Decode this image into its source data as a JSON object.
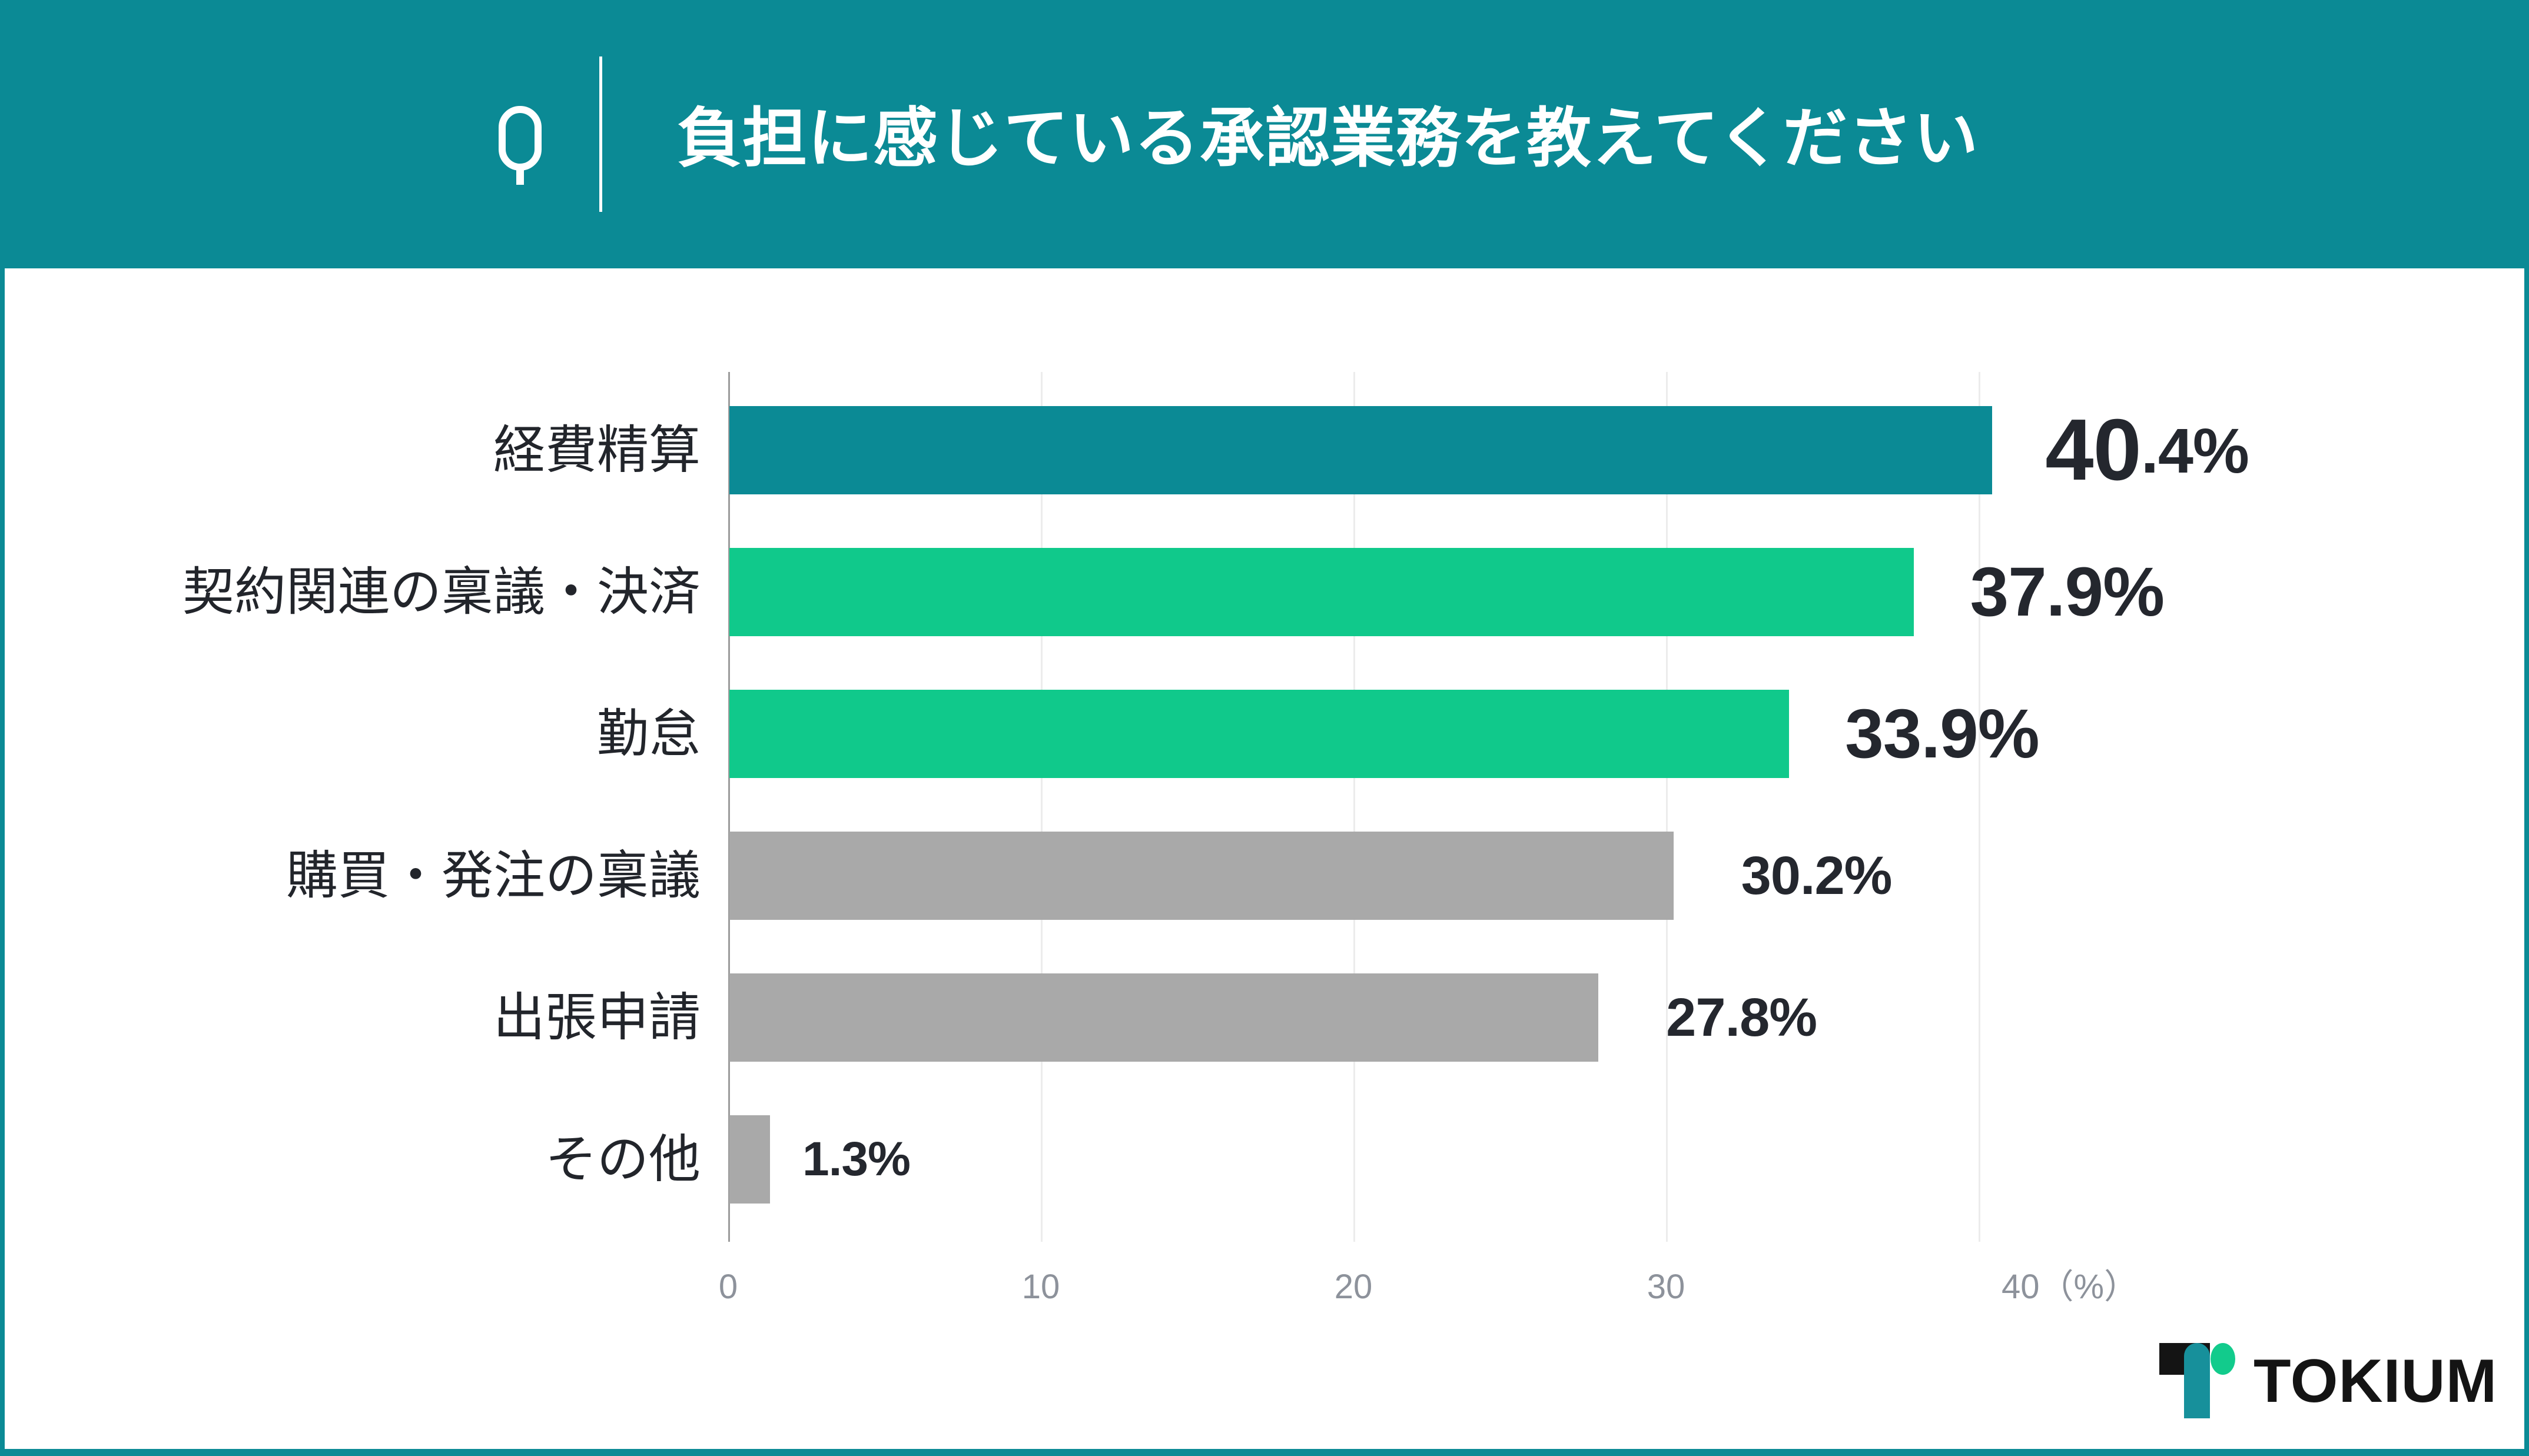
{
  "header": {
    "q_icon": "Q",
    "title": "負担に感じている承認業務を教えてください"
  },
  "chart_data": {
    "type": "bar",
    "orientation": "horizontal",
    "title": "負担に感じている承認業務を教えてください",
    "categories": [
      "経費精算",
      "契約関連の稟議・決済",
      "勤怠",
      "購買・発注の稟議",
      "出張申請",
      "その他"
    ],
    "values": [
      40.4,
      37.9,
      33.9,
      30.2,
      27.8,
      1.3
    ],
    "value_labels": [
      "40.4%",
      "37.9%",
      "33.9%",
      "30.2%",
      "27.8%",
      "1.3%"
    ],
    "unit": "%",
    "xlim": [
      0,
      42
    ],
    "x_ticks": [
      0,
      10,
      20,
      30,
      40
    ],
    "x_tick_labels": [
      "0",
      "10",
      "20",
      "30",
      "40（%）"
    ],
    "grid": true,
    "legend": false,
    "bar_colors": [
      "#0B8A95",
      "#10C98B",
      "#10C98B",
      "#A9A9A9",
      "#A9A9A9",
      "#A9A9A9"
    ]
  },
  "footer": {
    "logo_text": "TOKIUM"
  },
  "colors": {
    "header_teal": "#0B8A95",
    "bar_teal": "#0B8A95",
    "bar_green": "#10C98B",
    "bar_gray": "#A9A9A9",
    "value_text": "#24272E",
    "tick_text": "#8D929B",
    "grid_minor": "#ECECEC",
    "grid_zero": "#9C9C9C"
  }
}
